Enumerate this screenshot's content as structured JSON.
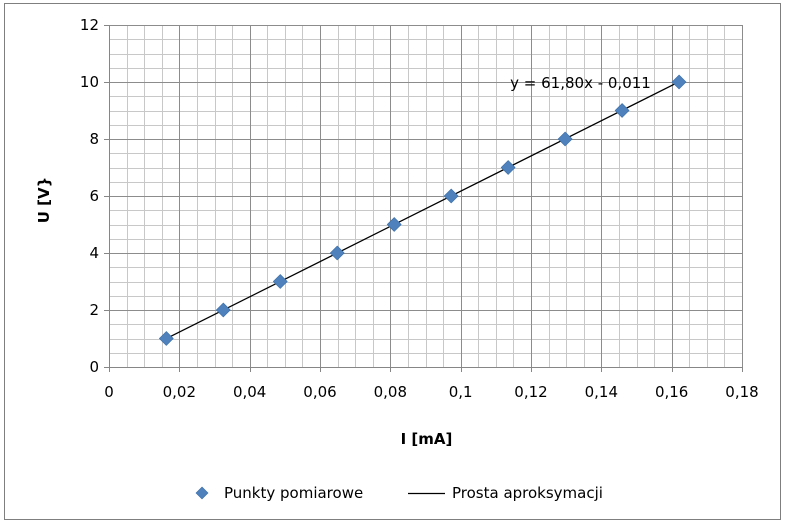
{
  "chart_data": {
    "type": "scatter",
    "xlabel": "I [mA]",
    "ylabel": "U [V}",
    "xlim": [
      0,
      0.18
    ],
    "ylim": [
      0,
      12
    ],
    "x_ticks": [
      "0",
      "0,02",
      "0,04",
      "0,06",
      "0,08",
      "0,1",
      "0,12",
      "0,14",
      "0,16",
      "0,18"
    ],
    "y_ticks": [
      "0",
      "2",
      "4",
      "6",
      "8",
      "10",
      "12"
    ],
    "x_major_step": 0.02,
    "y_major_step": 2,
    "x_minor_step": 0.005,
    "y_minor_step": 0.5,
    "grid": true,
    "legend_position": "bottom",
    "series": [
      {
        "name": "Punkty pomiarowe",
        "kind": "markers",
        "marker": "diamond",
        "color": "#4f81bd",
        "x": [
          0.0163,
          0.0325,
          0.0487,
          0.0649,
          0.0811,
          0.0973,
          0.1135,
          0.1297,
          0.1459,
          0.1621
        ],
        "y": [
          1,
          2,
          3,
          4,
          5,
          6,
          7,
          8,
          9,
          10
        ]
      },
      {
        "name": "Prosta aproksymacji",
        "kind": "line",
        "color": "#000000",
        "slope": 61.8,
        "intercept": -0.011,
        "x_range": [
          0.0163,
          0.1621
        ]
      }
    ],
    "annotations": [
      {
        "text": "y = 61,80x - 0,011",
        "x": 0.1135,
        "y": 10
      }
    ]
  }
}
